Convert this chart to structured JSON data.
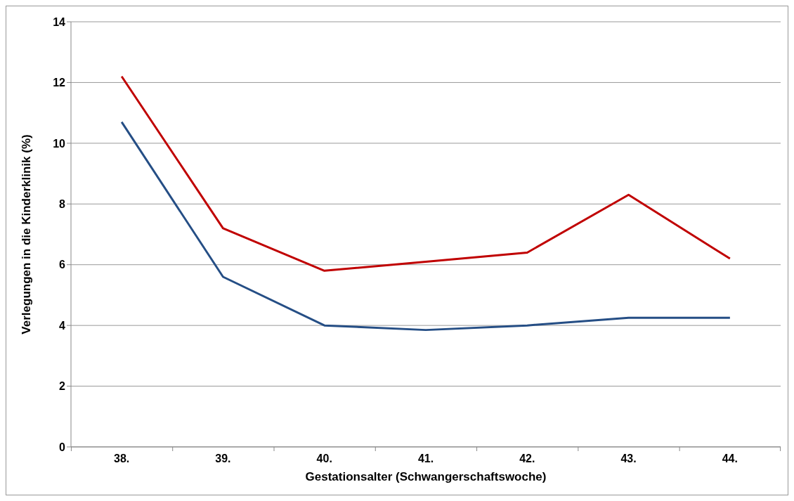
{
  "chart_data": {
    "type": "line",
    "xlabel": "Gestationsalter (Schwangerschaftswoche)",
    "ylabel": "Verlegungen in die Kinderklinik (%)",
    "categories": [
      "38.",
      "39.",
      "40.",
      "41.",
      "42.",
      "43.",
      "44."
    ],
    "series": [
      {
        "color": "#c00000",
        "values": [
          12.2,
          7.2,
          5.8,
          6.1,
          6.4,
          8.3,
          6.2
        ]
      },
      {
        "color": "#254e85",
        "values": [
          10.7,
          5.6,
          4.0,
          3.85,
          4.0,
          4.25,
          4.25
        ]
      }
    ],
    "ylim": [
      0,
      14
    ],
    "yticks": [
      0,
      2,
      4,
      6,
      8,
      10,
      12,
      14
    ],
    "grid": "y",
    "legend": false,
    "marker": "none",
    "line_style": "solid"
  }
}
